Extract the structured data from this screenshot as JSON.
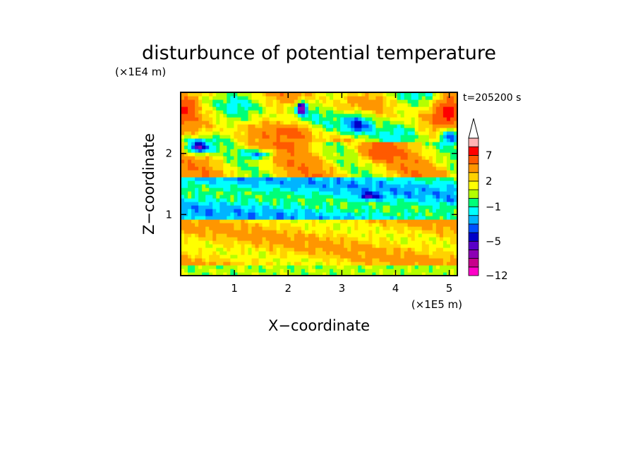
{
  "chart_data": {
    "type": "heatmap",
    "title": "disturbunce of potential temperature",
    "xlabel": "X−coordinate",
    "ylabel": "Z−coordinate",
    "x_unit": "(×1E5 m)",
    "y_unit": "(×1E4 m)",
    "time_label": "t=205200 s",
    "xlim": [
      0,
      5.15
    ],
    "ylim": [
      0,
      3.0
    ],
    "x_ticks": [
      "1",
      "2",
      "3",
      "4",
      "5"
    ],
    "x_tick_values": [
      1,
      2,
      3,
      4,
      5
    ],
    "y_ticks": [
      "1",
      "2"
    ],
    "y_tick_values": [
      1,
      2
    ],
    "colorbar": {
      "levels": [
        -12,
        -10,
        -8,
        -6,
        -5,
        -4,
        -3,
        -2,
        -1,
        0,
        1,
        2,
        3,
        5,
        7,
        9,
        11
      ],
      "labels": [
        "−12",
        "−5",
        "−1",
        "2",
        "7"
      ],
      "label_values": [
        -12,
        -5,
        -1,
        2,
        7
      ],
      "colors": [
        "#ff00c8",
        "#c8008c",
        "#8c00b4",
        "#5a00c8",
        "#0000c8",
        "#0050ff",
        "#00b4ff",
        "#00ffff",
        "#00ff78",
        "#b4ff00",
        "#ffff00",
        "#ffd200",
        "#ff9600",
        "#ff5a00",
        "#ff0000",
        "#ffb4b4"
      ],
      "extend": "max"
    },
    "field_description": [
      {
        "z_range": [
          0,
          0.15
        ],
        "value": 0.5
      },
      {
        "z_range": [
          0.15,
          0.9
        ],
        "value": 2.5
      },
      {
        "z_range": [
          0.9,
          1.6
        ],
        "value": -1.5
      },
      {
        "z_range": [
          1.6,
          2.2
        ],
        "value": 2.5
      },
      {
        "z_range": [
          2.2,
          3.0
        ],
        "value": 1.5
      }
    ]
  }
}
